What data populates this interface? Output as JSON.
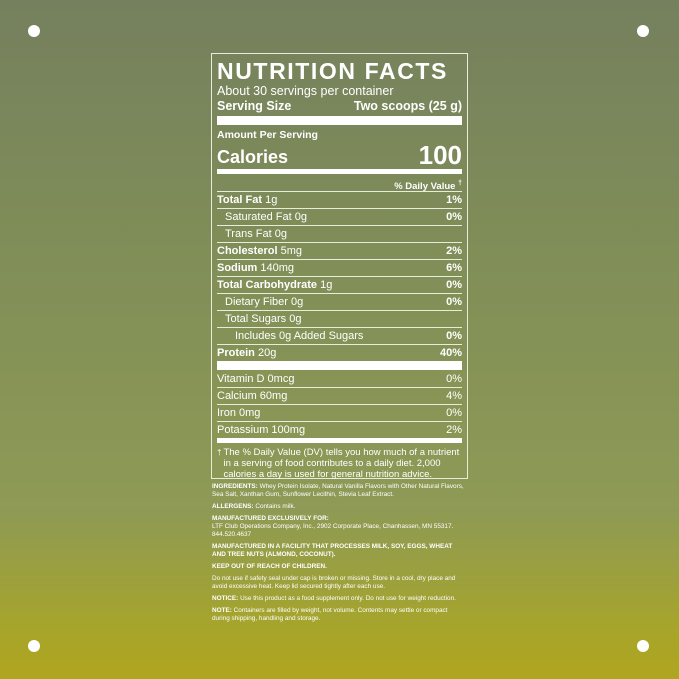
{
  "label": {
    "title": "NUTRITION FACTS",
    "servings": "About 30 servings per container",
    "serving_size_label": "Serving Size",
    "serving_size_value": "Two scoops (25 g)",
    "amount_per_serving": "Amount Per Serving",
    "calories_label": "Calories",
    "calories_value": "100",
    "dv_header": "% Daily Value",
    "dagger": "†",
    "rows": [
      {
        "name": "Total Fat",
        "amount": "1g",
        "dv": "1%"
      },
      {
        "name": "Saturated Fat",
        "amount": "0g",
        "dv": "0%"
      },
      {
        "name": "Trans Fat",
        "amount": "0g"
      },
      {
        "name": "Cholesterol",
        "amount": "5mg",
        "dv": "2%"
      },
      {
        "name": "Sodium",
        "amount": "140mg",
        "dv": "6%"
      },
      {
        "name": "Total Carbohydrate",
        "amount": "1g",
        "dv": "0%"
      },
      {
        "name": "Dietary Fiber",
        "amount": "0g",
        "dv": "0%"
      },
      {
        "name": "Total Sugars",
        "amount": "0g"
      },
      {
        "name": "Includes 0g Added Sugars",
        "dv": "0%"
      },
      {
        "name": "Protein",
        "amount": "20g",
        "dv": "40%"
      }
    ],
    "vitamins": [
      {
        "name": "Vitamin D",
        "amount": "0mcg",
        "dv": "0%"
      },
      {
        "name": "Calcium",
        "amount": "60mg",
        "dv": "4%"
      },
      {
        "name": "Iron",
        "amount": "0mg",
        "dv": "0%"
      },
      {
        "name": "Potassium",
        "amount": "100mg",
        "dv": "2%"
      }
    ],
    "footnote": "The % Daily Value (DV) tells you how much of a nutrient in a serving of food contributes to a daily diet. 2,000 calories a day is used for general nutrition advice."
  },
  "notes": [
    {
      "heading": "INGREDIENTS:",
      "text": "Whey Protein Isolate, Natural Vanilla Flavors with Other Natural Flavors, Sea Salt, Xanthan Gum, Sunflower Lecithin, Stevia Leaf Extract."
    },
    {
      "heading": "ALLERGENS:",
      "text": "Contains milk."
    },
    {
      "heading": "MANUFACTURED EXCLUSIVELY FOR:",
      "text": "LTF Club Operations Company, Inc., 2902 Corporate Place, Chanhassen, MN 55317. 844.520.4637"
    },
    {
      "heading": "MANUFACTURED IN A FACILITY THAT PROCESSES MILK, SOY, EGGS, WHEAT AND TREE NUTS (ALMOND, COCONUT)."
    },
    {
      "heading": "KEEP OUT OF REACH OF CHILDREN."
    },
    {
      "text": "Do not use if safety seal under cap is broken or missing. Store in a cool, dry place and avoid excessive heat. Keep lid secured tightly after each use."
    },
    {
      "heading": "NOTICE:",
      "text": "Use this product as a food supplement only. Do not use for weight reduction."
    },
    {
      "heading": "NOTE:",
      "text": "Containers are filled by weight, not volume. Contents may settle or compact during shipping, handling and storage."
    }
  ]
}
